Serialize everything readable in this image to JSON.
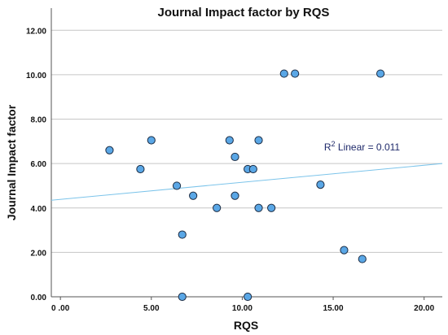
{
  "chart_data": {
    "type": "scatter",
    "title": "Journal Impact factor by RQS",
    "xlabel": "RQS",
    "ylabel": "Journal Impact factor",
    "xlim": [
      -0.5,
      21
    ],
    "ylim": [
      0,
      13
    ],
    "x_ticks": [
      0,
      5,
      10,
      15,
      20
    ],
    "x_tick_labels": [
      "0 .00",
      "5.00",
      "10.00",
      "15.00",
      "20.00"
    ],
    "y_ticks": [
      0,
      2,
      4,
      6,
      8,
      10,
      12
    ],
    "y_tick_labels": [
      "0.00",
      "2.00",
      "4.00",
      "6.00",
      "8.00",
      "10.00",
      "12.00"
    ],
    "grid": "horizontal",
    "points": [
      {
        "x": 2.7,
        "y": 6.6
      },
      {
        "x": 4.4,
        "y": 5.75
      },
      {
        "x": 5.0,
        "y": 7.05
      },
      {
        "x": 6.4,
        "y": 5.0
      },
      {
        "x": 6.7,
        "y": 2.8
      },
      {
        "x": 6.7,
        "y": 0.0
      },
      {
        "x": 7.3,
        "y": 4.55
      },
      {
        "x": 8.6,
        "y": 4.0
      },
      {
        "x": 9.3,
        "y": 7.05
      },
      {
        "x": 9.6,
        "y": 6.3
      },
      {
        "x": 9.6,
        "y": 4.55
      },
      {
        "x": 10.3,
        "y": 5.75
      },
      {
        "x": 10.3,
        "y": 0.0
      },
      {
        "x": 10.6,
        "y": 5.75
      },
      {
        "x": 10.9,
        "y": 7.05
      },
      {
        "x": 10.9,
        "y": 4.0
      },
      {
        "x": 11.6,
        "y": 4.0
      },
      {
        "x": 12.3,
        "y": 10.05
      },
      {
        "x": 12.9,
        "y": 10.05
      },
      {
        "x": 14.3,
        "y": 5.05
      },
      {
        "x": 15.6,
        "y": 2.1
      },
      {
        "x": 16.6,
        "y": 1.7
      },
      {
        "x": 17.6,
        "y": 10.05
      }
    ],
    "fit_line": {
      "x": [
        -0.5,
        21
      ],
      "y": [
        4.35,
        6.0
      ]
    },
    "annotation": {
      "r_label": "R",
      "superscript": "2",
      "text": " Linear = 0.011",
      "x": 14.5,
      "y": 6.6
    }
  }
}
